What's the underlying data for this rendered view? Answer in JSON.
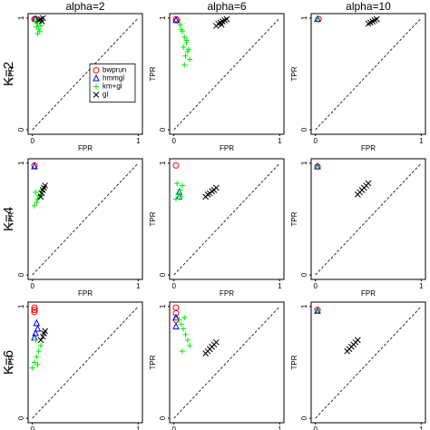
{
  "column_titles": [
    "alpha=2",
    "alpha=6",
    "alpha=10"
  ],
  "row_labels": [
    "K=2",
    "K=4",
    "K=6"
  ],
  "chart_data": [
    {
      "type": "scatter",
      "xlabel": "FPR",
      "ylabel": "TPR",
      "xlim": [
        -0.04,
        1.04
      ],
      "ylim": [
        -0.04,
        1.04
      ],
      "xticks": [
        0,
        1
      ],
      "yticks": [
        0,
        1
      ],
      "legend": "right",
      "series": [
        {
          "name": "bwprun",
          "color": "#ff0000",
          "marker": "circle",
          "x": [
            0.02,
            0.03
          ],
          "values": [
            0.99,
            0.99
          ]
        },
        {
          "name": "hmmgl",
          "color": "#0000ff",
          "marker": "triangle",
          "x": [
            0.03
          ],
          "values": [
            0.99
          ]
        },
        {
          "name": "km+gl",
          "color": "#00ee00",
          "marker": "plus",
          "x": [
            0.03,
            0.05,
            0.04,
            0.06,
            0.07,
            0.05,
            0.08,
            0.04
          ],
          "values": [
            0.97,
            0.95,
            0.92,
            0.9,
            0.88,
            0.86,
            0.93,
            0.98
          ]
        },
        {
          "name": "gl",
          "color": "#000000",
          "marker": "cross",
          "x": [
            0.06,
            0.08,
            0.1,
            0.09
          ],
          "values": [
            0.98,
            0.99,
            1.0,
            0.97
          ]
        }
      ]
    },
    {
      "type": "scatter",
      "xlabel": "FPR",
      "ylabel": "TPR",
      "xlim": [
        -0.04,
        1.04
      ],
      "ylim": [
        -0.04,
        1.04
      ],
      "xticks": [
        0,
        1
      ],
      "yticks": [
        0,
        1
      ],
      "series": [
        {
          "color": "#ff0000",
          "marker": "circle",
          "x": [
            0.02,
            0.03
          ],
          "values": [
            0.99,
            0.98
          ]
        },
        {
          "color": "#0000ff",
          "marker": "triangle",
          "x": [
            0.02
          ],
          "values": [
            0.98
          ]
        },
        {
          "color": "#00ee00",
          "marker": "plus",
          "x": [
            0.06,
            0.08,
            0.1,
            0.12,
            0.09,
            0.13,
            0.11,
            0.15,
            0.07,
            0.14,
            0.1,
            0.12
          ],
          "values": [
            0.94,
            0.88,
            0.83,
            0.78,
            0.74,
            0.7,
            0.66,
            0.63,
            0.9,
            0.72,
            0.58,
            0.8
          ]
        },
        {
          "color": "#000000",
          "marker": "cross",
          "x": [
            0.4,
            0.42,
            0.44,
            0.46,
            0.48,
            0.5,
            0.45
          ],
          "values": [
            0.93,
            0.95,
            0.96,
            0.97,
            0.98,
            0.99,
            0.94
          ]
        }
      ]
    },
    {
      "type": "scatter",
      "xlabel": "FPR",
      "ylabel": "TPR",
      "xlim": [
        -0.04,
        1.04
      ],
      "ylim": [
        -0.04,
        1.04
      ],
      "xticks": [
        0,
        1
      ],
      "yticks": [
        0,
        1
      ],
      "series": [
        {
          "color": "#ff0000",
          "marker": "circle",
          "x": [
            0.03
          ],
          "values": [
            0.99
          ]
        },
        {
          "color": "#0000ff",
          "marker": "triangle",
          "x": [
            0.02
          ],
          "values": [
            0.99
          ]
        },
        {
          "color": "#00ee00",
          "marker": "plus",
          "x": [
            0.02
          ],
          "values": [
            0.99
          ]
        },
        {
          "color": "#000000",
          "marker": "cross",
          "x": [
            0.5,
            0.52,
            0.54,
            0.56,
            0.58
          ],
          "values": [
            0.95,
            0.96,
            0.97,
            0.98,
            0.99
          ]
        }
      ]
    },
    {
      "type": "scatter",
      "xlabel": "FPR",
      "ylabel": "TPR",
      "xlim": [
        -0.04,
        1.04
      ],
      "ylim": [
        -0.04,
        1.04
      ],
      "xticks": [
        0,
        1
      ],
      "yticks": [
        0,
        1
      ],
      "series": [
        {
          "color": "#ff0000",
          "marker": "circle",
          "x": [
            0.02
          ],
          "values": [
            0.98
          ]
        },
        {
          "color": "#0000ff",
          "marker": "triangle",
          "x": [
            0.02
          ],
          "values": [
            0.97
          ]
        },
        {
          "color": "#00ee00",
          "marker": "plus",
          "x": [
            0.02,
            0.04,
            0.05,
            0.06,
            0.03,
            0.07,
            0.08
          ],
          "values": [
            0.62,
            0.65,
            0.68,
            0.71,
            0.74,
            0.7,
            0.75
          ]
        },
        {
          "color": "#000000",
          "marker": "cross",
          "x": [
            0.08,
            0.09,
            0.1,
            0.11,
            0.12
          ],
          "values": [
            0.7,
            0.73,
            0.76,
            0.78,
            0.8
          ]
        }
      ]
    },
    {
      "type": "scatter",
      "xlabel": "FPR",
      "ylabel": "TPR",
      "xlim": [
        -0.04,
        1.04
      ],
      "ylim": [
        -0.04,
        1.04
      ],
      "xticks": [
        0,
        1
      ],
      "yticks": [
        0,
        1
      ],
      "series": [
        {
          "color": "#ff0000",
          "marker": "circle",
          "x": [
            0.02
          ],
          "values": [
            0.98
          ]
        },
        {
          "color": "#0000ff",
          "marker": "triangle",
          "x": [
            0.05,
            0.05
          ],
          "values": [
            0.7,
            0.74
          ]
        },
        {
          "color": "#00ee00",
          "marker": "plus",
          "x": [
            0.02,
            0.04,
            0.06,
            0.08,
            0.03,
            0.07
          ],
          "values": [
            0.68,
            0.72,
            0.76,
            0.8,
            0.82,
            0.7
          ]
        },
        {
          "color": "#000000",
          "marker": "cross",
          "x": [
            0.3,
            0.32,
            0.34,
            0.36,
            0.38,
            0.4
          ],
          "values": [
            0.7,
            0.72,
            0.73,
            0.75,
            0.76,
            0.78
          ]
        }
      ]
    },
    {
      "type": "scatter",
      "xlabel": "FPR",
      "ylabel": "TPR",
      "xlim": [
        -0.04,
        1.04
      ],
      "ylim": [
        -0.04,
        1.04
      ],
      "xticks": [
        0,
        1
      ],
      "yticks": [
        0,
        1
      ],
      "series": [
        {
          "color": "#ff0000",
          "marker": "circle",
          "x": [
            0.02
          ],
          "values": [
            0.97
          ]
        },
        {
          "color": "#0000ff",
          "marker": "triangle",
          "x": [
            0.02
          ],
          "values": [
            0.97
          ]
        },
        {
          "color": "#00ee00",
          "marker": "plus",
          "x": [
            0.02
          ],
          "values": [
            0.97
          ]
        },
        {
          "color": "#000000",
          "marker": "cross",
          "x": [
            0.4,
            0.42,
            0.44,
            0.46,
            0.48,
            0.5
          ],
          "values": [
            0.72,
            0.74,
            0.76,
            0.78,
            0.8,
            0.82
          ]
        }
      ]
    },
    {
      "type": "scatter",
      "xlabel": "FPR",
      "ylabel": "TPR",
      "xlim": [
        -0.04,
        1.04
      ],
      "ylim": [
        -0.04,
        1.04
      ],
      "xticks": [
        0,
        1
      ],
      "yticks": [
        0,
        1
      ],
      "series": [
        {
          "color": "#ff0000",
          "marker": "circle",
          "x": [
            0.02,
            0.02,
            0.02
          ],
          "values": [
            0.95,
            0.97,
            0.99
          ]
        },
        {
          "color": "#0000ff",
          "marker": "triangle",
          "x": [
            0.02,
            0.03,
            0.05,
            0.04
          ],
          "values": [
            0.72,
            0.76,
            0.8,
            0.85
          ]
        },
        {
          "color": "#00ee00",
          "marker": "plus",
          "x": [
            0.0,
            0.02,
            0.04,
            0.06,
            0.08,
            0.03,
            0.05
          ],
          "values": [
            0.45,
            0.5,
            0.55,
            0.6,
            0.65,
            0.7,
            0.48
          ]
        },
        {
          "color": "#000000",
          "marker": "cross",
          "x": [
            0.08,
            0.1,
            0.11,
            0.12
          ],
          "values": [
            0.7,
            0.73,
            0.76,
            0.78
          ]
        }
      ]
    },
    {
      "type": "scatter",
      "xlabel": "FPR",
      "ylabel": "TPR",
      "xlim": [
        -0.04,
        1.04
      ],
      "ylim": [
        -0.04,
        1.04
      ],
      "xticks": [
        0,
        1
      ],
      "yticks": [
        0,
        1
      ],
      "series": [
        {
          "color": "#ff0000",
          "marker": "circle",
          "x": [
            0.02,
            0.02,
            0.02
          ],
          "values": [
            0.88,
            0.94,
            0.99
          ]
        },
        {
          "color": "#0000ff",
          "marker": "triangle",
          "x": [
            0.02,
            0.02
          ],
          "values": [
            0.82,
            0.9
          ]
        },
        {
          "color": "#00ee00",
          "marker": "plus",
          "x": [
            0.05,
            0.07,
            0.09,
            0.11,
            0.13,
            0.15,
            0.08,
            0.1
          ],
          "values": [
            0.88,
            0.84,
            0.8,
            0.75,
            0.7,
            0.65,
            0.6,
            0.9
          ]
        },
        {
          "color": "#000000",
          "marker": "cross",
          "x": [
            0.3,
            0.32,
            0.34,
            0.36,
            0.38,
            0.4
          ],
          "values": [
            0.58,
            0.6,
            0.62,
            0.64,
            0.66,
            0.68
          ]
        }
      ]
    },
    {
      "type": "scatter",
      "xlabel": "FPR",
      "ylabel": "TPR",
      "xlim": [
        -0.04,
        1.04
      ],
      "ylim": [
        -0.04,
        1.04
      ],
      "xticks": [
        0,
        1
      ],
      "yticks": [
        0,
        1
      ],
      "series": [
        {
          "color": "#ff0000",
          "marker": "circle",
          "x": [
            0.02
          ],
          "values": [
            0.97
          ]
        },
        {
          "color": "#0000ff",
          "marker": "triangle",
          "x": [
            0.02
          ],
          "values": [
            0.96
          ]
        },
        {
          "color": "#00ee00",
          "marker": "plus",
          "x": [
            0.02
          ],
          "values": [
            0.96
          ]
        },
        {
          "color": "#000000",
          "marker": "cross",
          "x": [
            0.3,
            0.32,
            0.34,
            0.36,
            0.38,
            0.4
          ],
          "values": [
            0.6,
            0.62,
            0.64,
            0.66,
            0.68,
            0.7
          ]
        }
      ]
    }
  ]
}
